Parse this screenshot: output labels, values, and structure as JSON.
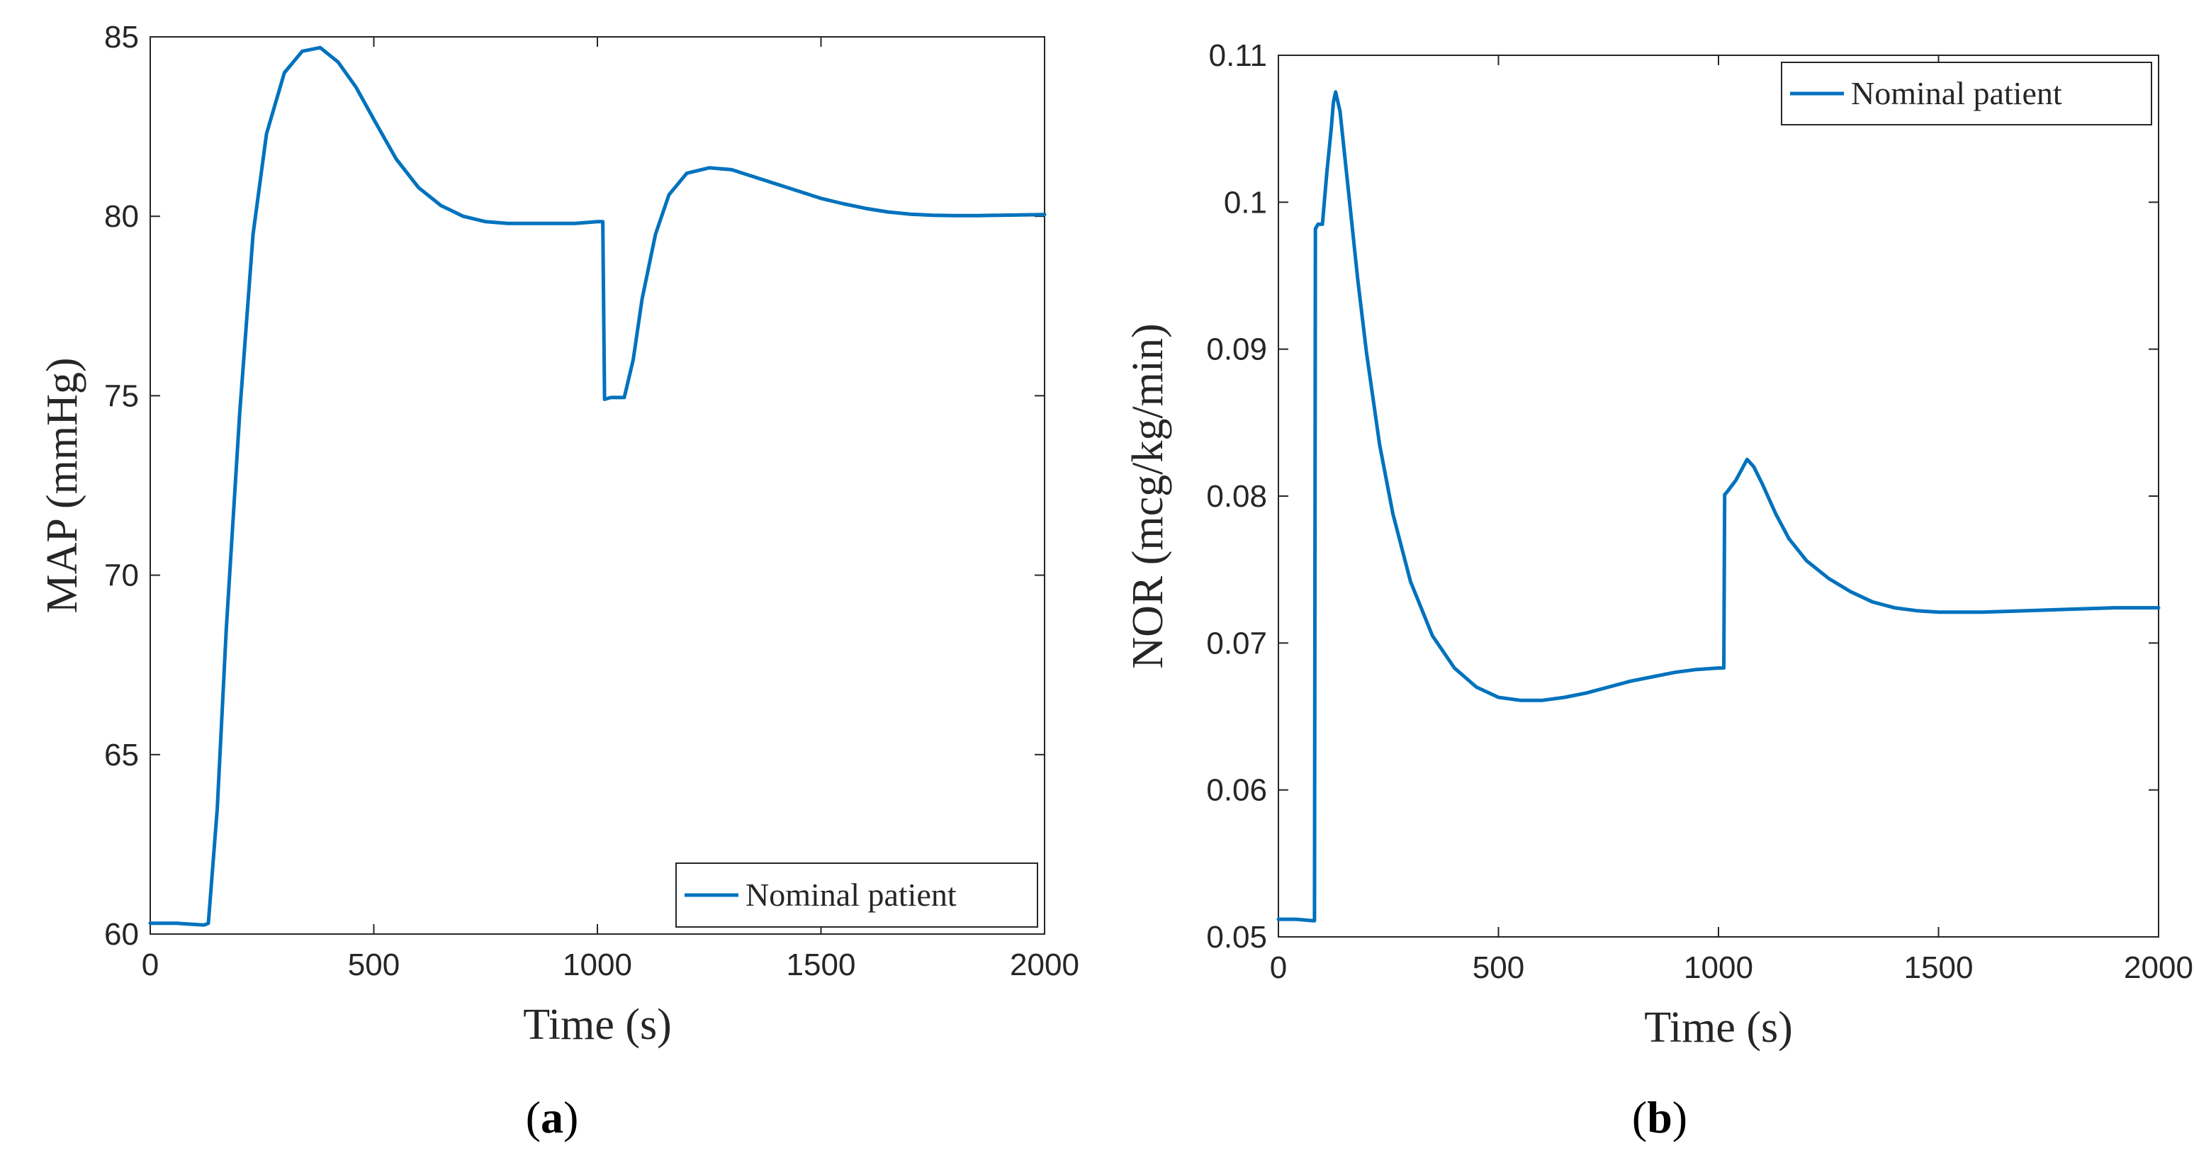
{
  "chart_data": [
    {
      "type": "line",
      "panel": "a",
      "caption_letter": "a",
      "xlabel": "Time (s)",
      "ylabel": "MAP (mmHg)",
      "xlim": [
        0,
        2000
      ],
      "ylim": [
        60,
        85
      ],
      "xticks": [
        0,
        500,
        1000,
        1500,
        2000
      ],
      "yticks": [
        60,
        65,
        70,
        75,
        80,
        85
      ],
      "xtick_labels": [
        "0",
        "500",
        "1000",
        "1500",
        "2000"
      ],
      "ytick_labels": [
        "60",
        "65",
        "70",
        "75",
        "80",
        "85"
      ],
      "grid": false,
      "legend_position": "bottom-right",
      "series": [
        {
          "name": "Nominal patient",
          "color": "#0072BD",
          "x": [
            0,
            60,
            120,
            130,
            150,
            170,
            200,
            230,
            260,
            300,
            340,
            380,
            420,
            460,
            500,
            550,
            600,
            650,
            700,
            750,
            800,
            850,
            900,
            950,
            1000,
            1012,
            1016,
            1030,
            1060,
            1080,
            1100,
            1130,
            1160,
            1200,
            1250,
            1300,
            1350,
            1400,
            1450,
            1500,
            1550,
            1600,
            1650,
            1700,
            1750,
            1800,
            1850,
            1900,
            1950,
            2000
          ],
          "y": [
            60.3,
            60.3,
            60.25,
            60.3,
            63.5,
            68.5,
            74.5,
            79.5,
            82.3,
            84.0,
            84.6,
            84.7,
            84.3,
            83.6,
            82.7,
            81.6,
            80.8,
            80.3,
            80.0,
            79.85,
            79.8,
            79.8,
            79.8,
            79.8,
            79.85,
            79.85,
            74.9,
            74.95,
            74.95,
            76.0,
            77.7,
            79.5,
            80.6,
            81.2,
            81.35,
            81.3,
            81.1,
            80.9,
            80.7,
            80.5,
            80.35,
            80.22,
            80.12,
            80.06,
            80.03,
            80.02,
            80.02,
            80.03,
            80.04,
            80.05
          ]
        }
      ]
    },
    {
      "type": "line",
      "panel": "b",
      "caption_letter": "b",
      "xlabel": "Time (s)",
      "ylabel": "NOR (mcg/kg/min)",
      "xlim": [
        0,
        2000
      ],
      "ylim": [
        0.05,
        0.11
      ],
      "xticks": [
        0,
        500,
        1000,
        1500,
        2000
      ],
      "yticks": [
        0.05,
        0.06,
        0.07,
        0.08,
        0.09,
        0.1,
        0.11
      ],
      "xtick_labels": [
        "0",
        "500",
        "1000",
        "1500",
        "2000"
      ],
      "ytick_labels": [
        "0.05",
        "0.06",
        "0.07",
        "0.08",
        "0.09",
        "0.1",
        "0.11"
      ],
      "grid": false,
      "legend_position": "top-right",
      "series": [
        {
          "name": "Nominal patient",
          "color": "#0072BD",
          "x": [
            0,
            40,
            80,
            82,
            84,
            90,
            100,
            110,
            120,
            125,
            130,
            140,
            160,
            180,
            200,
            230,
            260,
            300,
            350,
            400,
            450,
            500,
            550,
            600,
            650,
            700,
            750,
            800,
            850,
            900,
            950,
            1000,
            1012,
            1014,
            1020,
            1040,
            1065,
            1080,
            1100,
            1130,
            1160,
            1200,
            1250,
            1300,
            1350,
            1400,
            1450,
            1500,
            1550,
            1600,
            1700,
            1800,
            1900,
            2000
          ],
          "y": [
            0.0512,
            0.0512,
            0.0511,
            0.0511,
            0.0982,
            0.0985,
            0.0985,
            0.102,
            0.105,
            0.1068,
            0.1075,
            0.1062,
            0.1005,
            0.0948,
            0.0898,
            0.0835,
            0.0788,
            0.0742,
            0.0705,
            0.0683,
            0.067,
            0.0663,
            0.0661,
            0.0661,
            0.0663,
            0.0666,
            0.067,
            0.0674,
            0.0677,
            0.068,
            0.0682,
            0.0683,
            0.0683,
            0.0801,
            0.0803,
            0.0811,
            0.0825,
            0.082,
            0.0808,
            0.0788,
            0.0771,
            0.0756,
            0.0744,
            0.0735,
            0.0728,
            0.0724,
            0.0722,
            0.0721,
            0.0721,
            0.0721,
            0.0722,
            0.0723,
            0.0724,
            0.0724
          ]
        }
      ]
    }
  ]
}
